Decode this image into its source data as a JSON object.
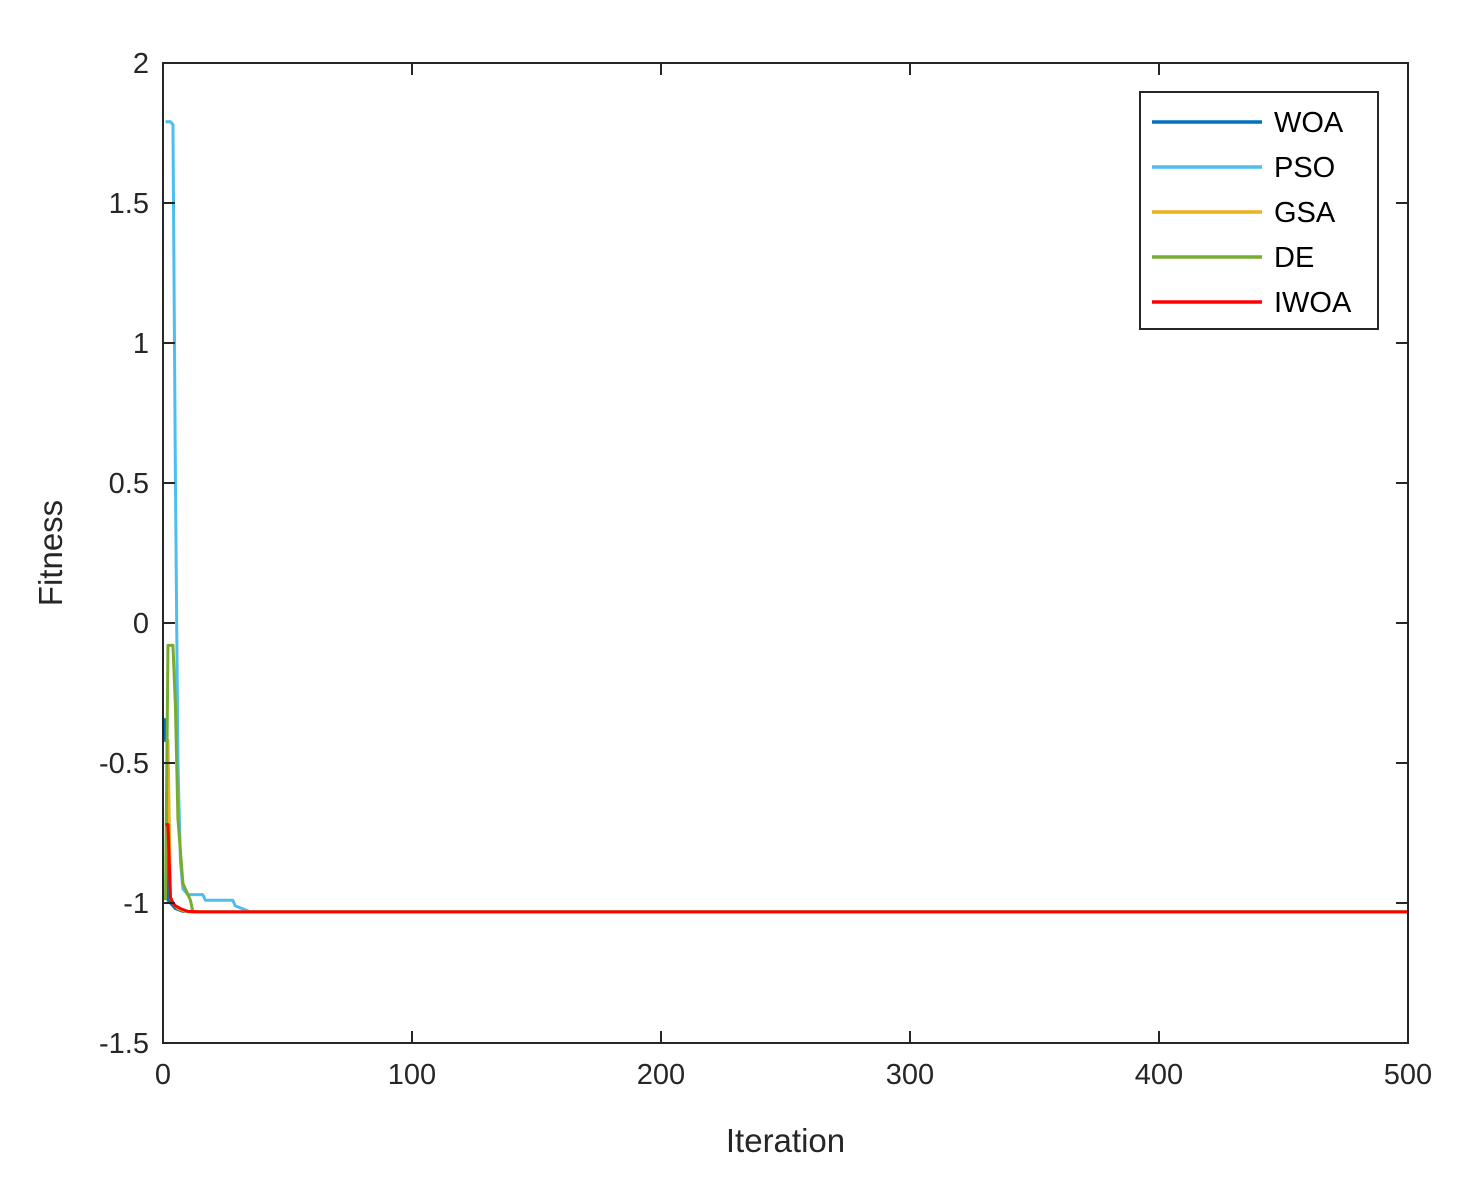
{
  "chart_data": {
    "type": "line",
    "xlabel": "Iteration",
    "ylabel": "Fitness",
    "xlim": [
      0,
      500
    ],
    "ylim": [
      -1.5,
      2
    ],
    "xticks": [
      0,
      100,
      200,
      300,
      400,
      500
    ],
    "yticks": [
      -1.5,
      -1,
      -0.5,
      0,
      0.5,
      1,
      1.5,
      2
    ],
    "xtick_labels": [
      "0",
      "100",
      "200",
      "300",
      "400",
      "500"
    ],
    "ytick_labels": [
      "-1.5",
      "-1",
      "-0.5",
      "0",
      "0.5",
      "1",
      "1.5",
      "2"
    ],
    "grid": false,
    "box": true,
    "legend_position": "top-right",
    "series": [
      {
        "name": "WOA",
        "color": "#0072BD",
        "x": [
          1,
          1,
          2,
          2,
          3,
          5,
          8,
          12,
          500
        ],
        "y": [
          -0.34,
          -0.42,
          -0.42,
          -0.99,
          -1.0,
          -1.02,
          -1.03,
          -1.0316,
          -1.0316
        ]
      },
      {
        "name": "PSO",
        "color": "#4DBEEE",
        "x": [
          1,
          3,
          4,
          5,
          6,
          7,
          8,
          9,
          10,
          16,
          17,
          28,
          29,
          35,
          500
        ],
        "y": [
          1.79,
          1.79,
          1.78,
          0.5,
          -0.5,
          -0.85,
          -0.95,
          -0.96,
          -0.97,
          -0.97,
          -0.99,
          -0.99,
          -1.01,
          -1.0316,
          -1.0316
        ]
      },
      {
        "name": "GSA",
        "color": "#EDB120",
        "x": [
          1,
          2,
          3,
          4,
          6,
          9,
          14,
          20,
          500
        ],
        "y": [
          -0.42,
          -0.42,
          -0.98,
          -1.0,
          -1.02,
          -1.03,
          -1.031,
          -1.0316,
          -1.0316
        ]
      },
      {
        "name": "DE",
        "color": "#77AC30",
        "x": [
          1,
          2,
          4,
          5,
          6,
          8,
          10,
          11,
          12,
          500
        ],
        "y": [
          -0.99,
          -0.08,
          -0.08,
          -0.3,
          -0.7,
          -0.93,
          -0.97,
          -0.99,
          -1.0316,
          -1.0316
        ]
      },
      {
        "name": "IWOA",
        "color": "#FF0000",
        "x": [
          1,
          2,
          3,
          4,
          5,
          7,
          10,
          15,
          500
        ],
        "y": [
          -0.72,
          -0.72,
          -0.98,
          -1.0,
          -1.01,
          -1.02,
          -1.03,
          -1.0316,
          -1.0316
        ]
      }
    ]
  }
}
